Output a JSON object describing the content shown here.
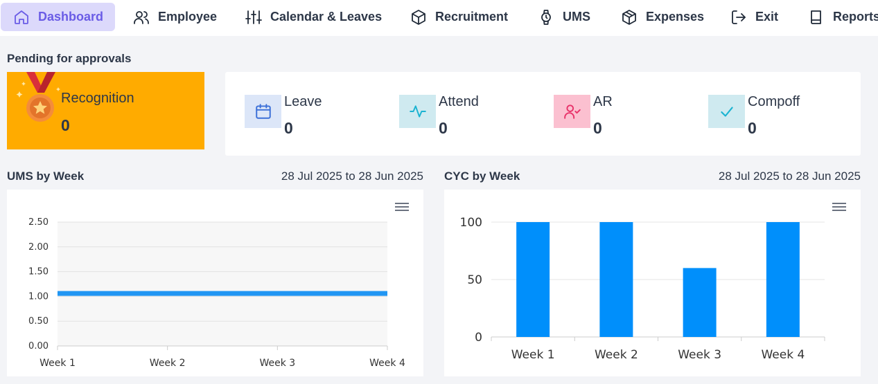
{
  "nav": {
    "items": [
      {
        "label": "Dashboard",
        "icon": "home-icon",
        "active": true
      },
      {
        "label": "Employee",
        "icon": "users-icon"
      },
      {
        "label": "Calendar & Leaves",
        "icon": "sliders-icon"
      },
      {
        "label": "Recruitment",
        "icon": "box-icon"
      },
      {
        "label": "UMS",
        "icon": "watch-icon"
      },
      {
        "label": "Expenses",
        "icon": "package-icon"
      },
      {
        "label": "Exit",
        "icon": "logout-icon"
      },
      {
        "label": "Reports",
        "icon": "book-icon"
      }
    ],
    "accent": "#6a5ce6",
    "active_bg": "#dcd9fb"
  },
  "pending": {
    "title": "Pending for approvals",
    "recognition": {
      "label": "Recognition",
      "count": "0",
      "icon": "medal-icon",
      "bg": "#ffab00"
    },
    "items": [
      {
        "label": "Leave",
        "count": "0",
        "icon": "calendar-icon",
        "bg": "#dce6f8",
        "color": "#3b6fd8"
      },
      {
        "label": "Attend",
        "count": "0",
        "icon": "activity-icon",
        "bg": "#cfeaf0",
        "color": "#1ab3d1"
      },
      {
        "label": "AR",
        "count": "0",
        "icon": "user-check-icon",
        "bg": "#fbc0d0",
        "color": "#e8336a"
      },
      {
        "label": "Compoff",
        "count": "0",
        "icon": "check-icon",
        "bg": "#cfeaf0",
        "color": "#1ab3d1"
      }
    ]
  },
  "ums": {
    "title": "UMS by Week",
    "date_range": "28 Jul 2025 to 28 Jun 2025",
    "menu_icon": "hamburger-menu-icon"
  },
  "cyc": {
    "title": "CYC by Week",
    "date_range": "28 Jul 2025 to 28 Jun 2025",
    "menu_icon": "hamburger-menu-icon"
  },
  "chart_data": [
    {
      "type": "line",
      "categories": [
        "Week 1",
        "Week 2",
        "Week 3",
        "Week 4"
      ],
      "series": [
        {
          "values": [
            1.06,
            1.06,
            1.06,
            1.06
          ],
          "color": "#2196f3"
        }
      ],
      "ylim": [
        0,
        2.5
      ],
      "yticks": [
        "0.00",
        "0.50",
        "1.00",
        "1.50",
        "2.00",
        "2.50"
      ],
      "grid": true,
      "legend": "none"
    },
    {
      "type": "bar",
      "categories": [
        "Week 1",
        "Week 2",
        "Week 3",
        "Week 4"
      ],
      "values": [
        100,
        100,
        60,
        100
      ],
      "ylim": [
        0,
        100
      ],
      "yticks": [
        "0",
        "50",
        "100"
      ],
      "color": "#008ffb",
      "grid": true,
      "legend": "none"
    }
  ]
}
